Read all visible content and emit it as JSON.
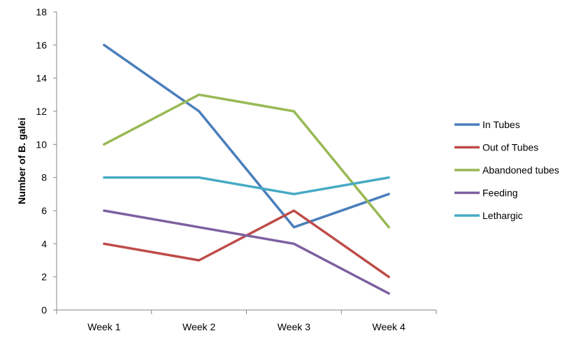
{
  "chart_data": {
    "type": "line",
    "title": "",
    "xlabel": "",
    "ylabel": "Number of B. galei",
    "categories": [
      "Week 1",
      "Week 2",
      "Week 3",
      "Week 4"
    ],
    "ylim": [
      0,
      18
    ],
    "yticks": [
      0,
      2,
      4,
      6,
      8,
      10,
      12,
      14,
      16,
      18
    ],
    "grid": false,
    "legend": "right",
    "series": [
      {
        "name": "In Tubes",
        "color": "#4a7ebb",
        "values": [
          16,
          12,
          5,
          7
        ]
      },
      {
        "name": "Out of Tubes",
        "color": "#be4b48",
        "values": [
          4,
          3,
          6,
          2
        ]
      },
      {
        "name": "Abandoned tubes",
        "color": "#98b954",
        "values": [
          10,
          13,
          12,
          5
        ]
      },
      {
        "name": "Feeding",
        "color": "#7d60a0",
        "values": [
          6,
          5,
          4,
          1
        ]
      },
      {
        "name": "Lethargic",
        "color": "#46aac5",
        "values": [
          8,
          8,
          7,
          8
        ]
      }
    ]
  }
}
